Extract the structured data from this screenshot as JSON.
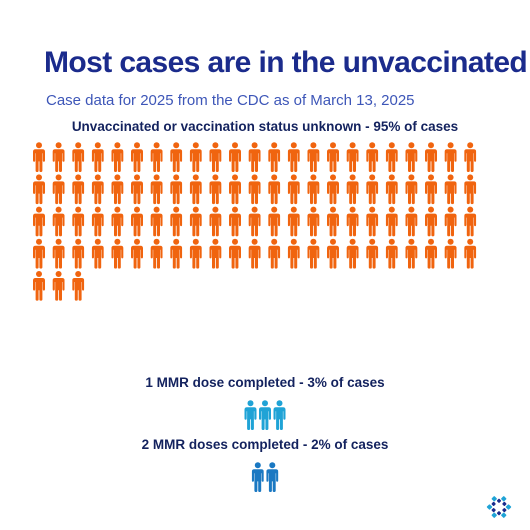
{
  "title": "Most cases are in the unvaccinated",
  "subtitle": "Case data for 2025 from the CDC as of March 13, 2025",
  "chart_data": {
    "type": "pictograph",
    "unit": "1 icon = 1% of cases",
    "groups": [
      {
        "label": "Unvaccinated or vaccination status unknown - 95% of cases",
        "category": "Unvaccinated or vaccination status unknown",
        "value": 95,
        "icons": 95,
        "color": "#f0640f"
      },
      {
        "label": "1 MMR dose completed - 3% of cases",
        "category": "1 MMR dose completed",
        "value": 3,
        "icons": 3,
        "color": "#1fa3d6"
      },
      {
        "label": "2 MMR doses completed - 2% of cases",
        "category": "2 MMR doses completed",
        "value": 2,
        "icons": 2,
        "color": "#1a78c2"
      }
    ]
  },
  "logo": {
    "name": "organization-logo",
    "colors": [
      "#1fa3d6",
      "#1b2b8c"
    ]
  }
}
